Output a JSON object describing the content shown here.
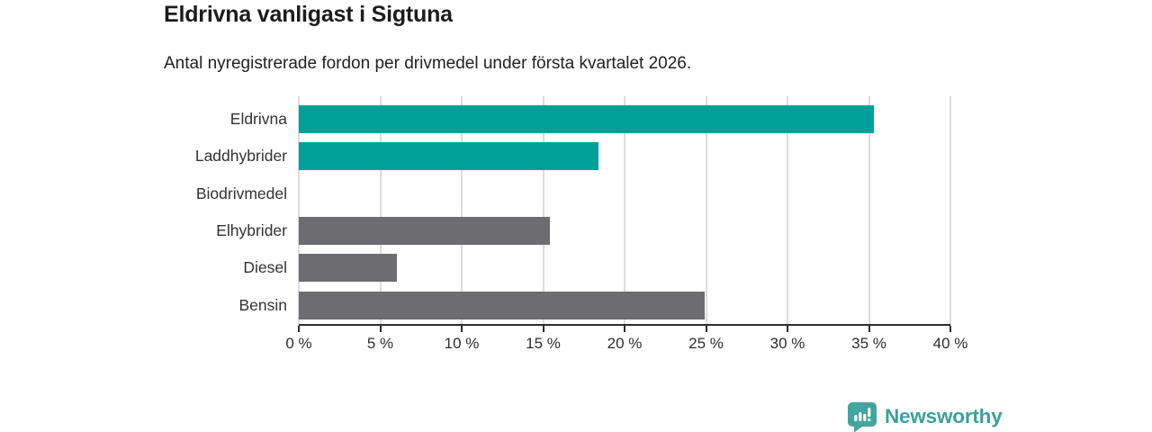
{
  "header": {
    "title": "Eldrivna vanligast i Sigtuna",
    "subtitle": "Antal nyregistrerade fordon per drivmedel under första kvartalet 2026."
  },
  "colors": {
    "electric_teal": "#00a099",
    "fossil_gray": "#6c6c71",
    "gridline": "#dcdcdc",
    "axis": "#2e2e2e",
    "logo_teal": "#3aa19b",
    "logo_icon_teal": "#43a59e"
  },
  "chart_data": {
    "type": "bar",
    "orientation": "horizontal",
    "title": "Eldrivna vanligast i Sigtuna",
    "subtitle": "Antal nyregistrerade fordon per drivmedel under första kvartalet 2026.",
    "categories": [
      "Eldrivna",
      "Laddhybrider",
      "Biodrivmedel",
      "Elhybrider",
      "Diesel",
      "Bensin"
    ],
    "values": [
      35.3,
      18.4,
      0,
      15.4,
      6,
      24.9
    ],
    "unit": "%",
    "bar_colors": [
      "#00a099",
      "#00a099",
      "#6c6c71",
      "#6c6c71",
      "#6c6c71",
      "#6c6c71"
    ],
    "xlim": [
      0,
      40
    ],
    "x_ticks": [
      0,
      5,
      10,
      15,
      20,
      25,
      30,
      35,
      40
    ],
    "x_tick_labels": [
      "0 %",
      "5 %",
      "10 %",
      "15 %",
      "20 %",
      "25 %",
      "30 %",
      "35 %",
      "40 %"
    ],
    "grid": true,
    "legend": false
  },
  "footer": {
    "brand": "Newsworthy"
  }
}
